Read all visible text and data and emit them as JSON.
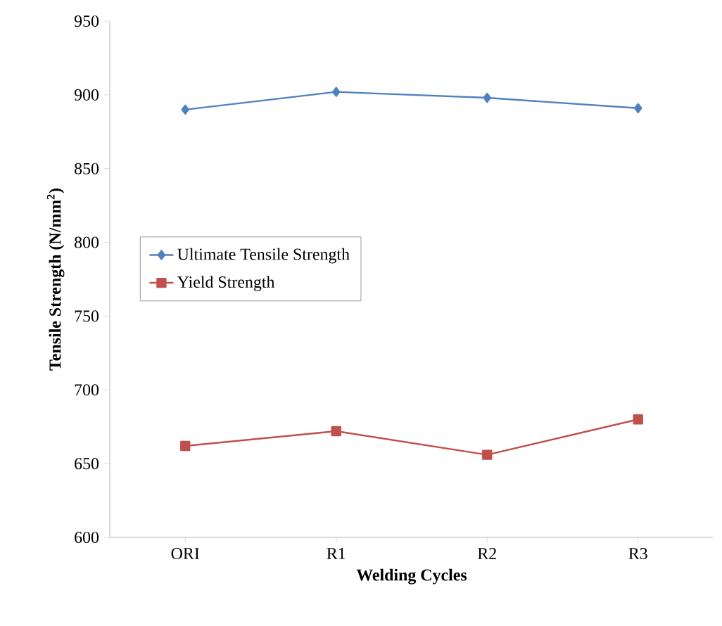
{
  "chart_data": {
    "type": "line",
    "xlabel": "Welding Cycles",
    "ylabel": "Tensile Strength (N/mm$^{2}$)",
    "categories": [
      "ORI",
      "R1",
      "R2",
      "R3"
    ],
    "series": [
      {
        "name": "Ultimate Tensile Strength",
        "color": "#4f81bd",
        "marker": "diamond",
        "values": [
          890,
          902,
          898,
          891
        ]
      },
      {
        "name": "Yield Strength",
        "color": "#c0504d",
        "marker": "square",
        "values": [
          662,
          672,
          656,
          680
        ]
      }
    ],
    "ylim": [
      600,
      950
    ],
    "yticks": [
      600,
      650,
      700,
      750,
      800,
      850,
      900,
      950
    ],
    "legend": "left",
    "grid": false,
    "line_style": "solid"
  }
}
